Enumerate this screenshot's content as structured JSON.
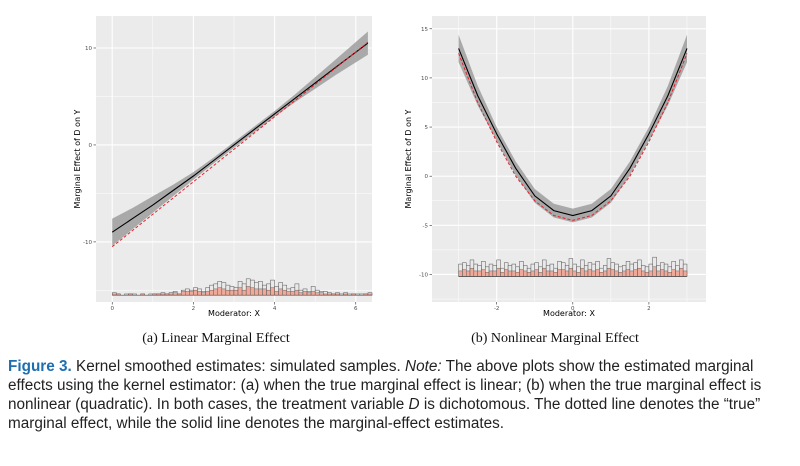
{
  "caption": {
    "label": "Figure 3.",
    "title": "Kernel smoothed estimates: simulated samples.",
    "note_label": "Note:",
    "text_1": "The above plots show the estimated marginal effects using the kernel estimator: (a) when the true marginal effect is linear; (b) when the true marginal effect is nonlinear (quadratic). In both cases, the treatment variable",
    "var_d": "D",
    "text_2": "is dichotomous. The dotted line denotes the “true” marginal effect, while the solid line denotes the marginal-effect estimates."
  },
  "colors": {
    "panel_bg": "#ebebeb",
    "grid": "#ffffff",
    "ribbon": "#9e9e9e",
    "estimate_line": "#000000",
    "true_line": "#e8212a",
    "hist_treated": "#f0a898",
    "hist_outline": "#555555"
  },
  "chart_data": [
    {
      "type": "line",
      "subtitle": "(a) Linear Marginal Effect",
      "xlabel": "Moderator: X",
      "ylabel": "Marginal Effect of D on Y",
      "x_ticks": [
        0,
        2,
        4,
        6
      ],
      "y_ticks": [
        -10,
        0,
        10
      ],
      "xlim": [
        -0.4,
        6.4
      ],
      "ylim": [
        -16.2,
        13.3
      ],
      "grid": true,
      "series": [
        {
          "role": "estimate",
          "style": "solid",
          "x": [
            0,
            0.5,
            1,
            1.5,
            2,
            2.5,
            3,
            3.5,
            4,
            4.5,
            5,
            5.5,
            6.3
          ],
          "y": [
            -9.0,
            -7.6,
            -6.2,
            -4.7,
            -3.2,
            -1.6,
            0.0,
            1.6,
            3.2,
            4.8,
            6.4,
            8.0,
            10.5
          ]
        },
        {
          "role": "true",
          "style": "dashed",
          "x": [
            0,
            6.3
          ],
          "y": [
            -10.5,
            10.6
          ]
        }
      ],
      "ci_band": {
        "x": [
          0,
          0.5,
          1,
          1.5,
          2,
          2.5,
          3,
          3.5,
          4,
          4.5,
          5,
          5.5,
          6.3
        ],
        "lower": [
          -10.4,
          -8.7,
          -7.0,
          -5.3,
          -3.6,
          -1.9,
          -0.3,
          1.3,
          2.9,
          4.4,
          5.8,
          7.2,
          9.3
        ],
        "upper": [
          -7.6,
          -6.5,
          -5.3,
          -4.1,
          -2.8,
          -1.3,
          0.3,
          1.9,
          3.5,
          5.2,
          7.0,
          8.8,
          11.7
        ]
      },
      "histogram": {
        "baseline": -15.5,
        "unit": 0.13,
        "x_start": 0,
        "bin_width": 0.1,
        "all_counts": [
          2,
          1,
          0,
          1,
          1,
          1,
          0,
          1,
          0,
          1,
          1,
          1,
          2,
          1,
          2,
          3,
          1,
          4,
          5,
          4,
          6,
          5,
          3,
          6,
          8,
          9,
          11,
          10,
          8,
          7,
          6,
          11,
          9,
          13,
          12,
          10,
          11,
          8,
          9,
          12,
          7,
          10,
          8,
          5,
          6,
          9,
          4,
          5,
          3,
          7,
          4,
          3,
          3,
          2,
          1,
          2,
          1,
          2,
          1,
          1,
          1,
          1,
          1,
          2
        ],
        "treated_counts": [
          1,
          1,
          0,
          0,
          1,
          0,
          0,
          1,
          0,
          0,
          1,
          1,
          1,
          1,
          1,
          2,
          1,
          3,
          3,
          3,
          4,
          3,
          2,
          3,
          4,
          5,
          6,
          5,
          4,
          4,
          4,
          6,
          4,
          7,
          6,
          5,
          5,
          5,
          4,
          6,
          3,
          5,
          4,
          3,
          3,
          4,
          2,
          3,
          2,
          3,
          2,
          2,
          1,
          1,
          1,
          1,
          0,
          1,
          0,
          1,
          0,
          0,
          1,
          1
        ]
      }
    },
    {
      "type": "line",
      "subtitle": "(b) Nonlinear Marginal Effect",
      "xlabel": "Moderator: X",
      "ylabel": "Marginal Effect of D on Y",
      "x_ticks": [
        -2,
        0,
        2
      ],
      "y_ticks": [
        -10,
        -5,
        0,
        5,
        10,
        15
      ],
      "xlim": [
        -3.7,
        3.5
      ],
      "ylim": [
        -12.8,
        16.3
      ],
      "grid": true,
      "series": [
        {
          "role": "estimate",
          "style": "solid",
          "x": [
            -3,
            -2.5,
            -2,
            -1.5,
            -1,
            -0.5,
            0,
            0.5,
            1,
            1.5,
            2,
            2.5,
            3
          ],
          "y": [
            13.0,
            8.2,
            4.3,
            0.8,
            -2.0,
            -3.5,
            -4.0,
            -3.5,
            -2.0,
            0.8,
            4.3,
            8.2,
            13.0
          ]
        },
        {
          "role": "true",
          "style": "dashed",
          "x": [
            -3,
            -2.5,
            -2,
            -1.5,
            -1,
            -0.5,
            0,
            0.5,
            1,
            1.5,
            2,
            2.5,
            3
          ],
          "y": [
            12.5,
            7.5,
            3.5,
            0.0,
            -2.5,
            -4.0,
            -4.5,
            -4.0,
            -2.5,
            0.0,
            3.5,
            7.5,
            12.5
          ]
        }
      ],
      "ci_band": {
        "x": [
          -3,
          -2.5,
          -2,
          -1.5,
          -1,
          -0.5,
          0,
          0.5,
          1,
          1.5,
          2,
          2.5,
          3
        ],
        "lower": [
          11.6,
          7.2,
          3.6,
          0.1,
          -2.7,
          -4.2,
          -4.7,
          -4.2,
          -2.7,
          0.1,
          3.6,
          7.2,
          11.6
        ],
        "upper": [
          14.4,
          9.2,
          5.0,
          1.5,
          -1.3,
          -2.8,
          -3.3,
          -2.8,
          -1.3,
          1.5,
          5.0,
          9.2,
          14.4
        ]
      },
      "histogram": {
        "baseline": -10.2,
        "unit": 0.14,
        "x_start": -3,
        "bin_width": 0.1,
        "all_counts": [
          9,
          10,
          8,
          12,
          9,
          8,
          11,
          7,
          9,
          8,
          12,
          6,
          10,
          8,
          9,
          7,
          11,
          8,
          6,
          9,
          10,
          7,
          12,
          8,
          9,
          6,
          11,
          10,
          8,
          13,
          9,
          7,
          12,
          8,
          10,
          9,
          11,
          6,
          8,
          13,
          10,
          9,
          7,
          8,
          11,
          9,
          10,
          12,
          8,
          7,
          9,
          14,
          8,
          10,
          9,
          7,
          11,
          8,
          12,
          9
        ],
        "treated_counts": [
          4,
          5,
          4,
          6,
          4,
          4,
          5,
          3,
          4,
          4,
          6,
          3,
          5,
          4,
          4,
          3,
          5,
          4,
          3,
          4,
          5,
          3,
          6,
          4,
          4,
          3,
          5,
          5,
          4,
          6,
          4,
          3,
          6,
          4,
          5,
          4,
          5,
          3,
          4,
          6,
          5,
          4,
          3,
          4,
          5,
          4,
          5,
          6,
          4,
          3,
          4,
          7,
          4,
          5,
          4,
          3,
          5,
          4,
          6,
          4
        ]
      }
    }
  ]
}
